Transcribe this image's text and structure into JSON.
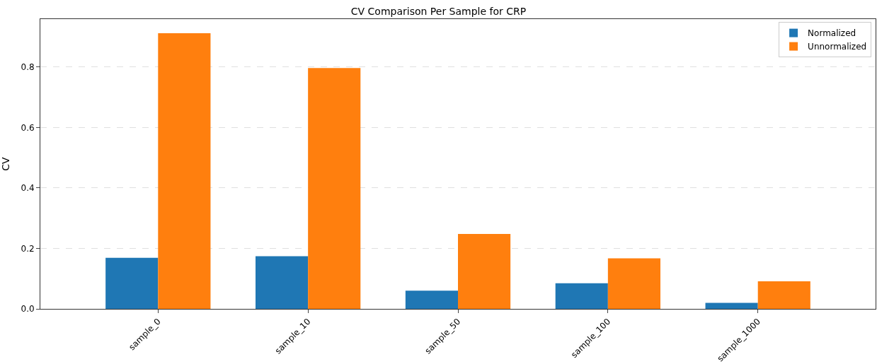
{
  "chart_data": {
    "type": "bar",
    "title": "CV Comparison Per Sample for CRP",
    "ylabel": "CV",
    "categories": [
      "sample_0",
      "sample_10",
      "sample_50",
      "sample_100",
      "sample_1000"
    ],
    "series": [
      {
        "name": "Normalized",
        "color": "#1f77b4",
        "values": [
          0.169,
          0.174,
          0.06,
          0.085,
          0.02
        ]
      },
      {
        "name": "Unnormalized",
        "color": "#ff7f0e",
        "values": [
          0.912,
          0.797,
          0.248,
          0.167,
          0.091
        ]
      }
    ],
    "ylim": [
      0,
      0.959
    ],
    "yticks": [
      {
        "value": 0,
        "label": "0.0"
      },
      0.2,
      0.4,
      0.6,
      0.8
    ],
    "grid": "y",
    "legend": "top right"
  }
}
